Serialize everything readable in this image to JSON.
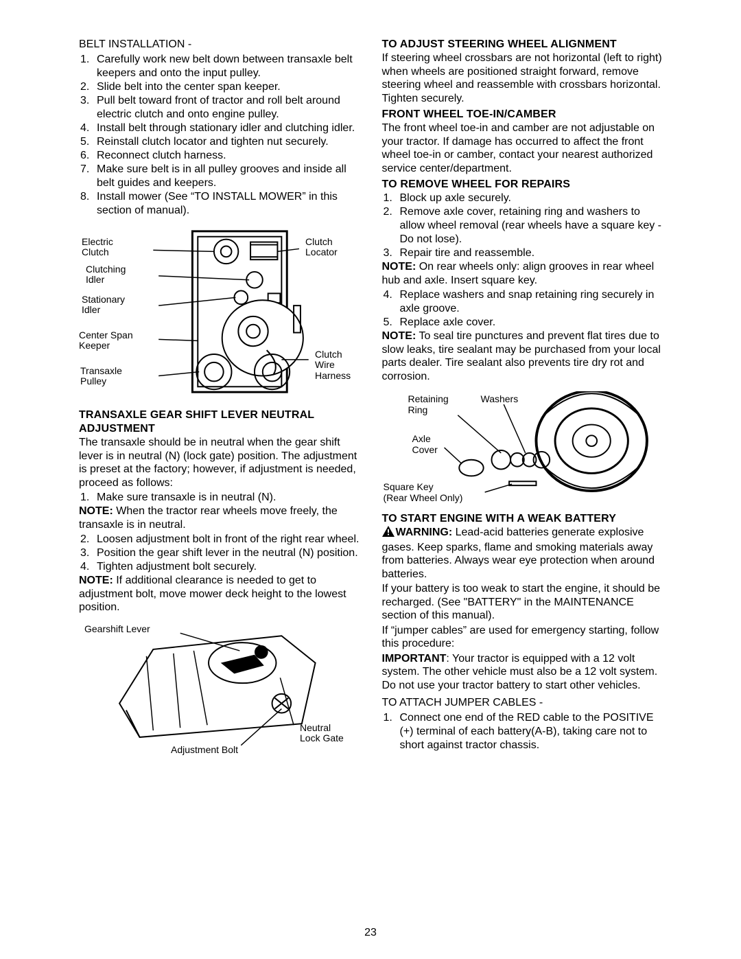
{
  "page_number": "23",
  "left": {
    "belt_install_title": "BELT INSTALLATION -",
    "belt_steps": [
      "Carefully work new belt down between transaxle belt keepers and onto the input pulley.",
      "Slide belt into the center span keeper.",
      "Pull belt toward front of tractor and roll belt around electric clutch and onto engine pulley.",
      "Install belt through stationary idler and clutching idler.",
      "Reinstall clutch locator and tighten nut securely.",
      "Reconnect clutch harness.",
      "Make sure belt is in all pulley grooves and inside all belt guides and keepers.",
      "Install mower (See “TO INSTALL MOWER” in this section of manual)."
    ],
    "diagram1_labels": {
      "electric_clutch": "Electric\nClutch",
      "clutching_idler": "Clutching\nIdler",
      "stationary_idler": "Stationary\nIdler",
      "center_span_keeper": "Center Span\nKeeper",
      "transaxle_pulley": "Transaxle\nPulley",
      "clutch_locator": "Clutch\nLocator",
      "clutch_wire_harness": "Clutch\nWire\nHarness"
    },
    "transaxle_heading": "TRANSAXLE GEAR SHIFT LEVER NEUTRAL ADJUSTMENT",
    "transaxle_intro": "The transaxle should be in neutral when the gear shift lever is in neutral (N) (lock gate) position. The adjustment is preset at the factory; however, if adjustment is needed, proceed as follows:",
    "transaxle_step1": "Make sure transaxle is in neutral (N).",
    "note1_label": "NOTE:",
    "note1_text": " When the tractor rear wheels move freely, the transaxle is in neutral.",
    "transaxle_step2": "Loosen adjustment bolt in front of the right rear wheel.",
    "transaxle_step3": "Position the gear shift lever in the neutral (N) position.",
    "transaxle_step4": "Tighten adjustment bolt securely.",
    "note2_label": "NOTE:",
    "note2_text": "  If additional clearance is needed to get to adjustment bolt, move mower deck height to the lowest position.",
    "diagram2_labels": {
      "gearshift_lever": "Gearshift Lever",
      "neutral_lock_gate": "Neutral\nLock Gate",
      "adjustment_bolt": "Adjustment Bolt"
    }
  },
  "right": {
    "steer_heading": "TO ADJUST STEERING WHEEL ALIGNMENT",
    "steer_text": "If steering wheel crossbars are not horizontal (left to right) when wheels are positioned straight forward, remove steering wheel and reassemble with crossbars horizontal. Tighten securely.",
    "toein_heading": "FRONT WHEEL TOE-IN/CAMBER",
    "toein_text": "The front wheel toe-in and camber are not adjustable on your tractor.  If damage has occurred to affect the front wheel toe-in or camber, contact your nearest authorized service center/department.",
    "removewheel_heading": "TO REMOVE WHEEL FOR REPAIRS",
    "removewheel_steps_a": [
      "Block up axle securely.",
      "Remove axle cover, retaining ring and washers to allow wheel removal (rear wheels have a square key - Do not lose).",
      "Repair tire and reassemble."
    ],
    "rw_note1_label": "NOTE:",
    "rw_note1_text": " On rear wheels only:  align grooves in rear wheel hub and axle.  Insert square key.",
    "removewheel_steps_b": [
      "Replace washers and snap retaining ring securely in axle groove.",
      "Replace axle cover."
    ],
    "rw_note2_label": "NOTE:",
    "rw_note2_text": " To seal tire punctures and prevent flat tires due to slow leaks, tire sealant may be purchased from your local parts dealer. Tire sealant also prevents tire dry rot and corrosion.",
    "diagram3_labels": {
      "retaining_ring": "Retaining\nRing",
      "washers": "Washers",
      "axle_cover": "Axle\nCover",
      "square_key": "Square Key\n(Rear Wheel Only)"
    },
    "battery_heading": "TO START ENGINE WITH A WEAK BATTERY",
    "warning_label": "WARNING:",
    "warning_text": "  Lead-acid batteries generate explosive gases.  Keep sparks, flame and smoking materials away from batteries.  Always wear eye protection when around batteries.",
    "battery_p1": "If your battery is too weak to start the engine, it should be recharged. (See \"BATTERY\" in the MAINTENANCE section of this manual).",
    "battery_p2": "If “jumper cables” are used for emergency starting, follow this procedure:",
    "important_label": "IMPORTANT",
    "important_text": ":  Your tractor is equipped with a 12 volt system. The other vehicle must also be a 12 volt system. Do not use your tractor battery to start other vehicles.",
    "attach_title": "TO ATTACH JUMPER CABLES -",
    "attach_step1": "Connect one end of the RED cable to the POSITIVE (+) terminal of each battery(A-B), taking care not to short against tractor chassis."
  }
}
